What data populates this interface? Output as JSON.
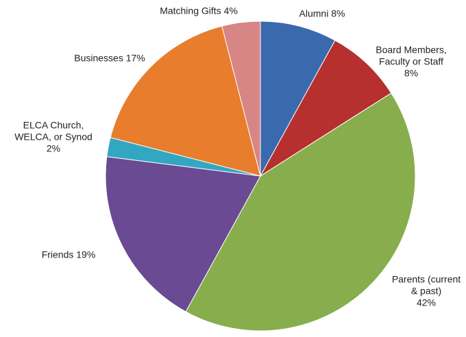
{
  "chart_data": {
    "type": "pie",
    "categories": [
      "Alumni",
      "Board Members, Faculty or Staff",
      "Parents (current & past)",
      "Friends",
      "ELCA Church, WELCA, or Synod",
      "Businesses",
      "Matching Gifts"
    ],
    "values": [
      8,
      8,
      42,
      19,
      2,
      17,
      4
    ],
    "value_labels": [
      "8%",
      "8%",
      "42%",
      "19%",
      "2%",
      "17%",
      "4%"
    ],
    "colors": [
      "#3a69ad",
      "#b5302e",
      "#87ad4c",
      "#6a4a93",
      "#33a7c2",
      "#e77d2d",
      "#d88585"
    ]
  }
}
